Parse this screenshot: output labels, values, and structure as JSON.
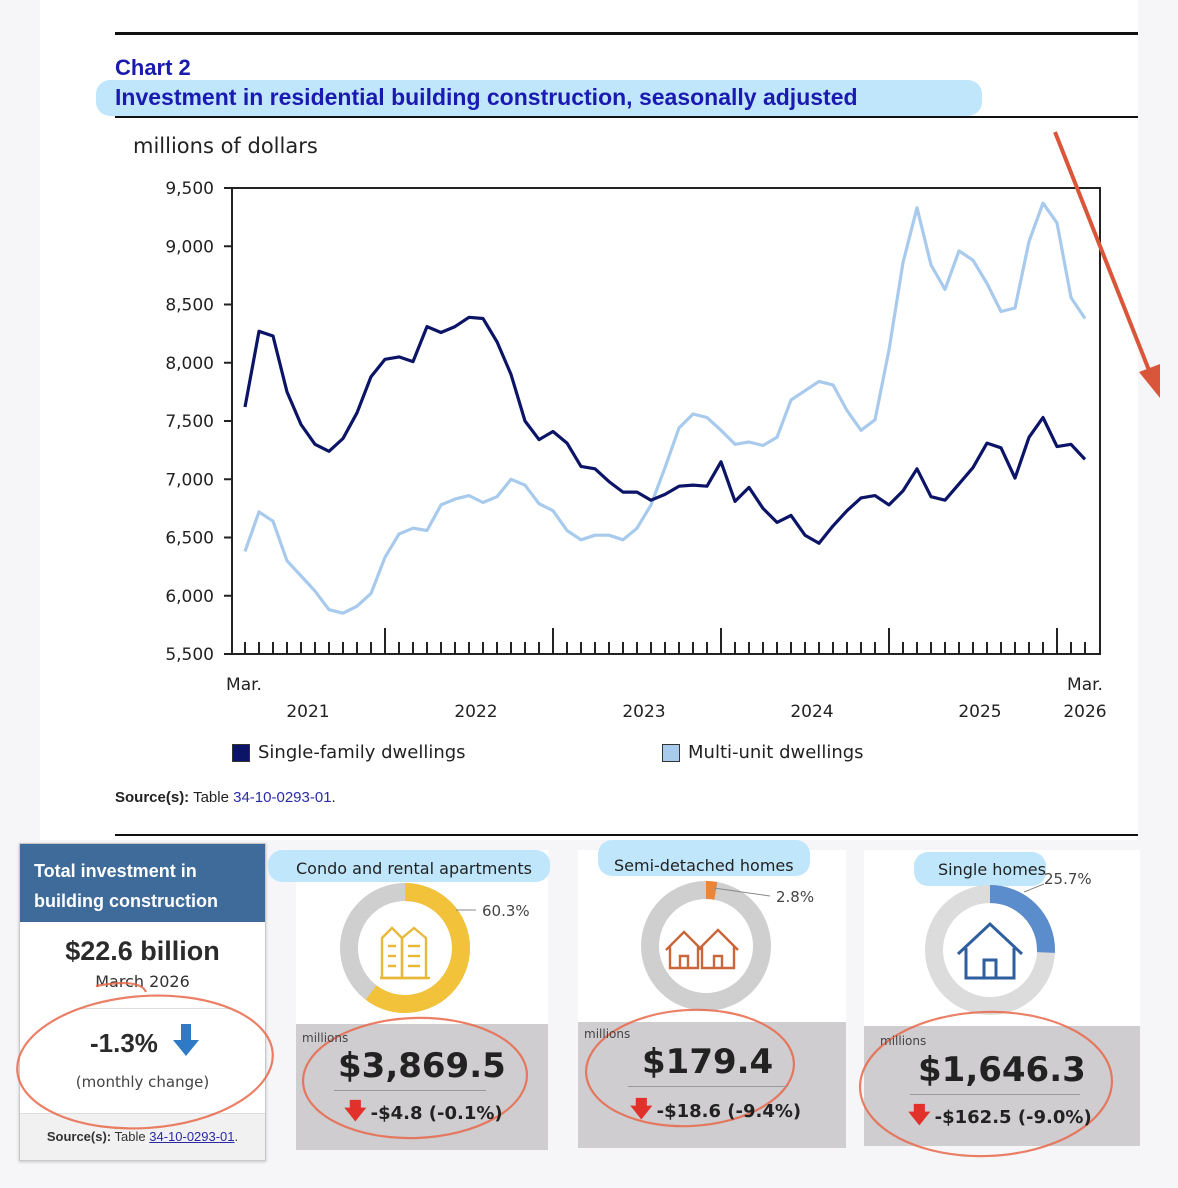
{
  "chart": {
    "number": "Chart 2",
    "title": "Investment in residential building construction, seasonally adjusted",
    "ylabel": "millions of dollars",
    "x_start_label": "Mar.",
    "x_end_label": "Mar.",
    "source_label": "Source(s):",
    "source_text": "Table",
    "source_link": "34-10-0293-01",
    "source_end": "."
  },
  "chart_data": {
    "type": "line",
    "title": "Investment in residential building construction, seasonally adjusted",
    "ylabel": "millions of dollars",
    "ylim": [
      5500,
      9500
    ],
    "yticks": [
      5500,
      6000,
      6500,
      7000,
      7500,
      8000,
      8500,
      9000,
      9500
    ],
    "ytick_labels": [
      "5,500",
      "6,000",
      "6,500",
      "7,000",
      "7,500",
      "8,000",
      "8,500",
      "9,000",
      "9,500"
    ],
    "x_start": "2021-03",
    "x_end": "2026-03",
    "year_labels": [
      "2021",
      "2022",
      "2023",
      "2024",
      "2025",
      "2026"
    ],
    "legend_position": "bottom",
    "series": [
      {
        "name": "Single-family dwellings",
        "color": "#0b1466",
        "values": [
          7620,
          8270,
          8230,
          7750,
          7470,
          7300,
          7240,
          7350,
          7570,
          7880,
          8030,
          8050,
          8010,
          8310,
          8260,
          8310,
          8390,
          8380,
          8180,
          7900,
          7500,
          7340,
          7410,
          7310,
          7110,
          7090,
          6980,
          6890,
          6890,
          6820,
          6870,
          6940,
          6950,
          6940,
          7150,
          6810,
          6930,
          6750,
          6630,
          6690,
          6520,
          6450,
          6600,
          6730,
          6840,
          6860,
          6780,
          6900,
          7090,
          6850,
          6820,
          6960,
          7100,
          7310,
          7270,
          7010,
          7360,
          7530,
          7280,
          7300,
          7170
        ]
      },
      {
        "name": "Multi-unit dwellings",
        "color": "#a8caed",
        "values": [
          6380,
          6720,
          6640,
          6300,
          6170,
          6040,
          5880,
          5850,
          5910,
          6020,
          6330,
          6530,
          6580,
          6560,
          6780,
          6830,
          6860,
          6800,
          6850,
          7000,
          6950,
          6790,
          6730,
          6560,
          6480,
          6520,
          6520,
          6480,
          6580,
          6780,
          7100,
          7440,
          7560,
          7530,
          7420,
          7300,
          7320,
          7290,
          7360,
          7680,
          7760,
          7840,
          7810,
          7590,
          7420,
          7510,
          8110,
          8860,
          9330,
          8840,
          8630,
          8960,
          8880,
          8680,
          8440,
          8470,
          9040,
          9370,
          9200,
          8560,
          8380
        ]
      }
    ]
  },
  "cards": {
    "total": {
      "heading": "Total investment in building construction",
      "amount": "$22.6 billion",
      "date": "March 2026",
      "change": "-1.3%",
      "change_caption": "(monthly change)",
      "source_label": "Source(s):",
      "source_text": "Table",
      "source_link": "34-10-0293-01",
      "source_end": "."
    },
    "condo": {
      "title": "Condo and rental apartments",
      "share": "60.3%",
      "share_value": 0.603,
      "color": "#f2c33a",
      "unit": "millions",
      "amount": "$3,869.5",
      "change": "-$4.8 (-0.1%)"
    },
    "semi": {
      "title": "Semi-detached homes",
      "share": "2.8%",
      "share_value": 0.028,
      "color": "#e8863b",
      "unit": "millions",
      "amount": "$179.4",
      "change": "-$18.6 (-9.4%)"
    },
    "single": {
      "title": "Single homes",
      "share": "25.7%",
      "share_value": 0.257,
      "color": "#5b8ccc",
      "unit": "millions",
      "amount": "$1,646.3",
      "change": "-$162.5 (-9.0%)"
    }
  },
  "colors": {
    "title_blue": "#1a1ab0",
    "highlight": "#bfe6fb",
    "annotation_red": "#e04a2e",
    "total_header": "#3e6b99",
    "down_arrow_blue": "#2f7ac6"
  }
}
